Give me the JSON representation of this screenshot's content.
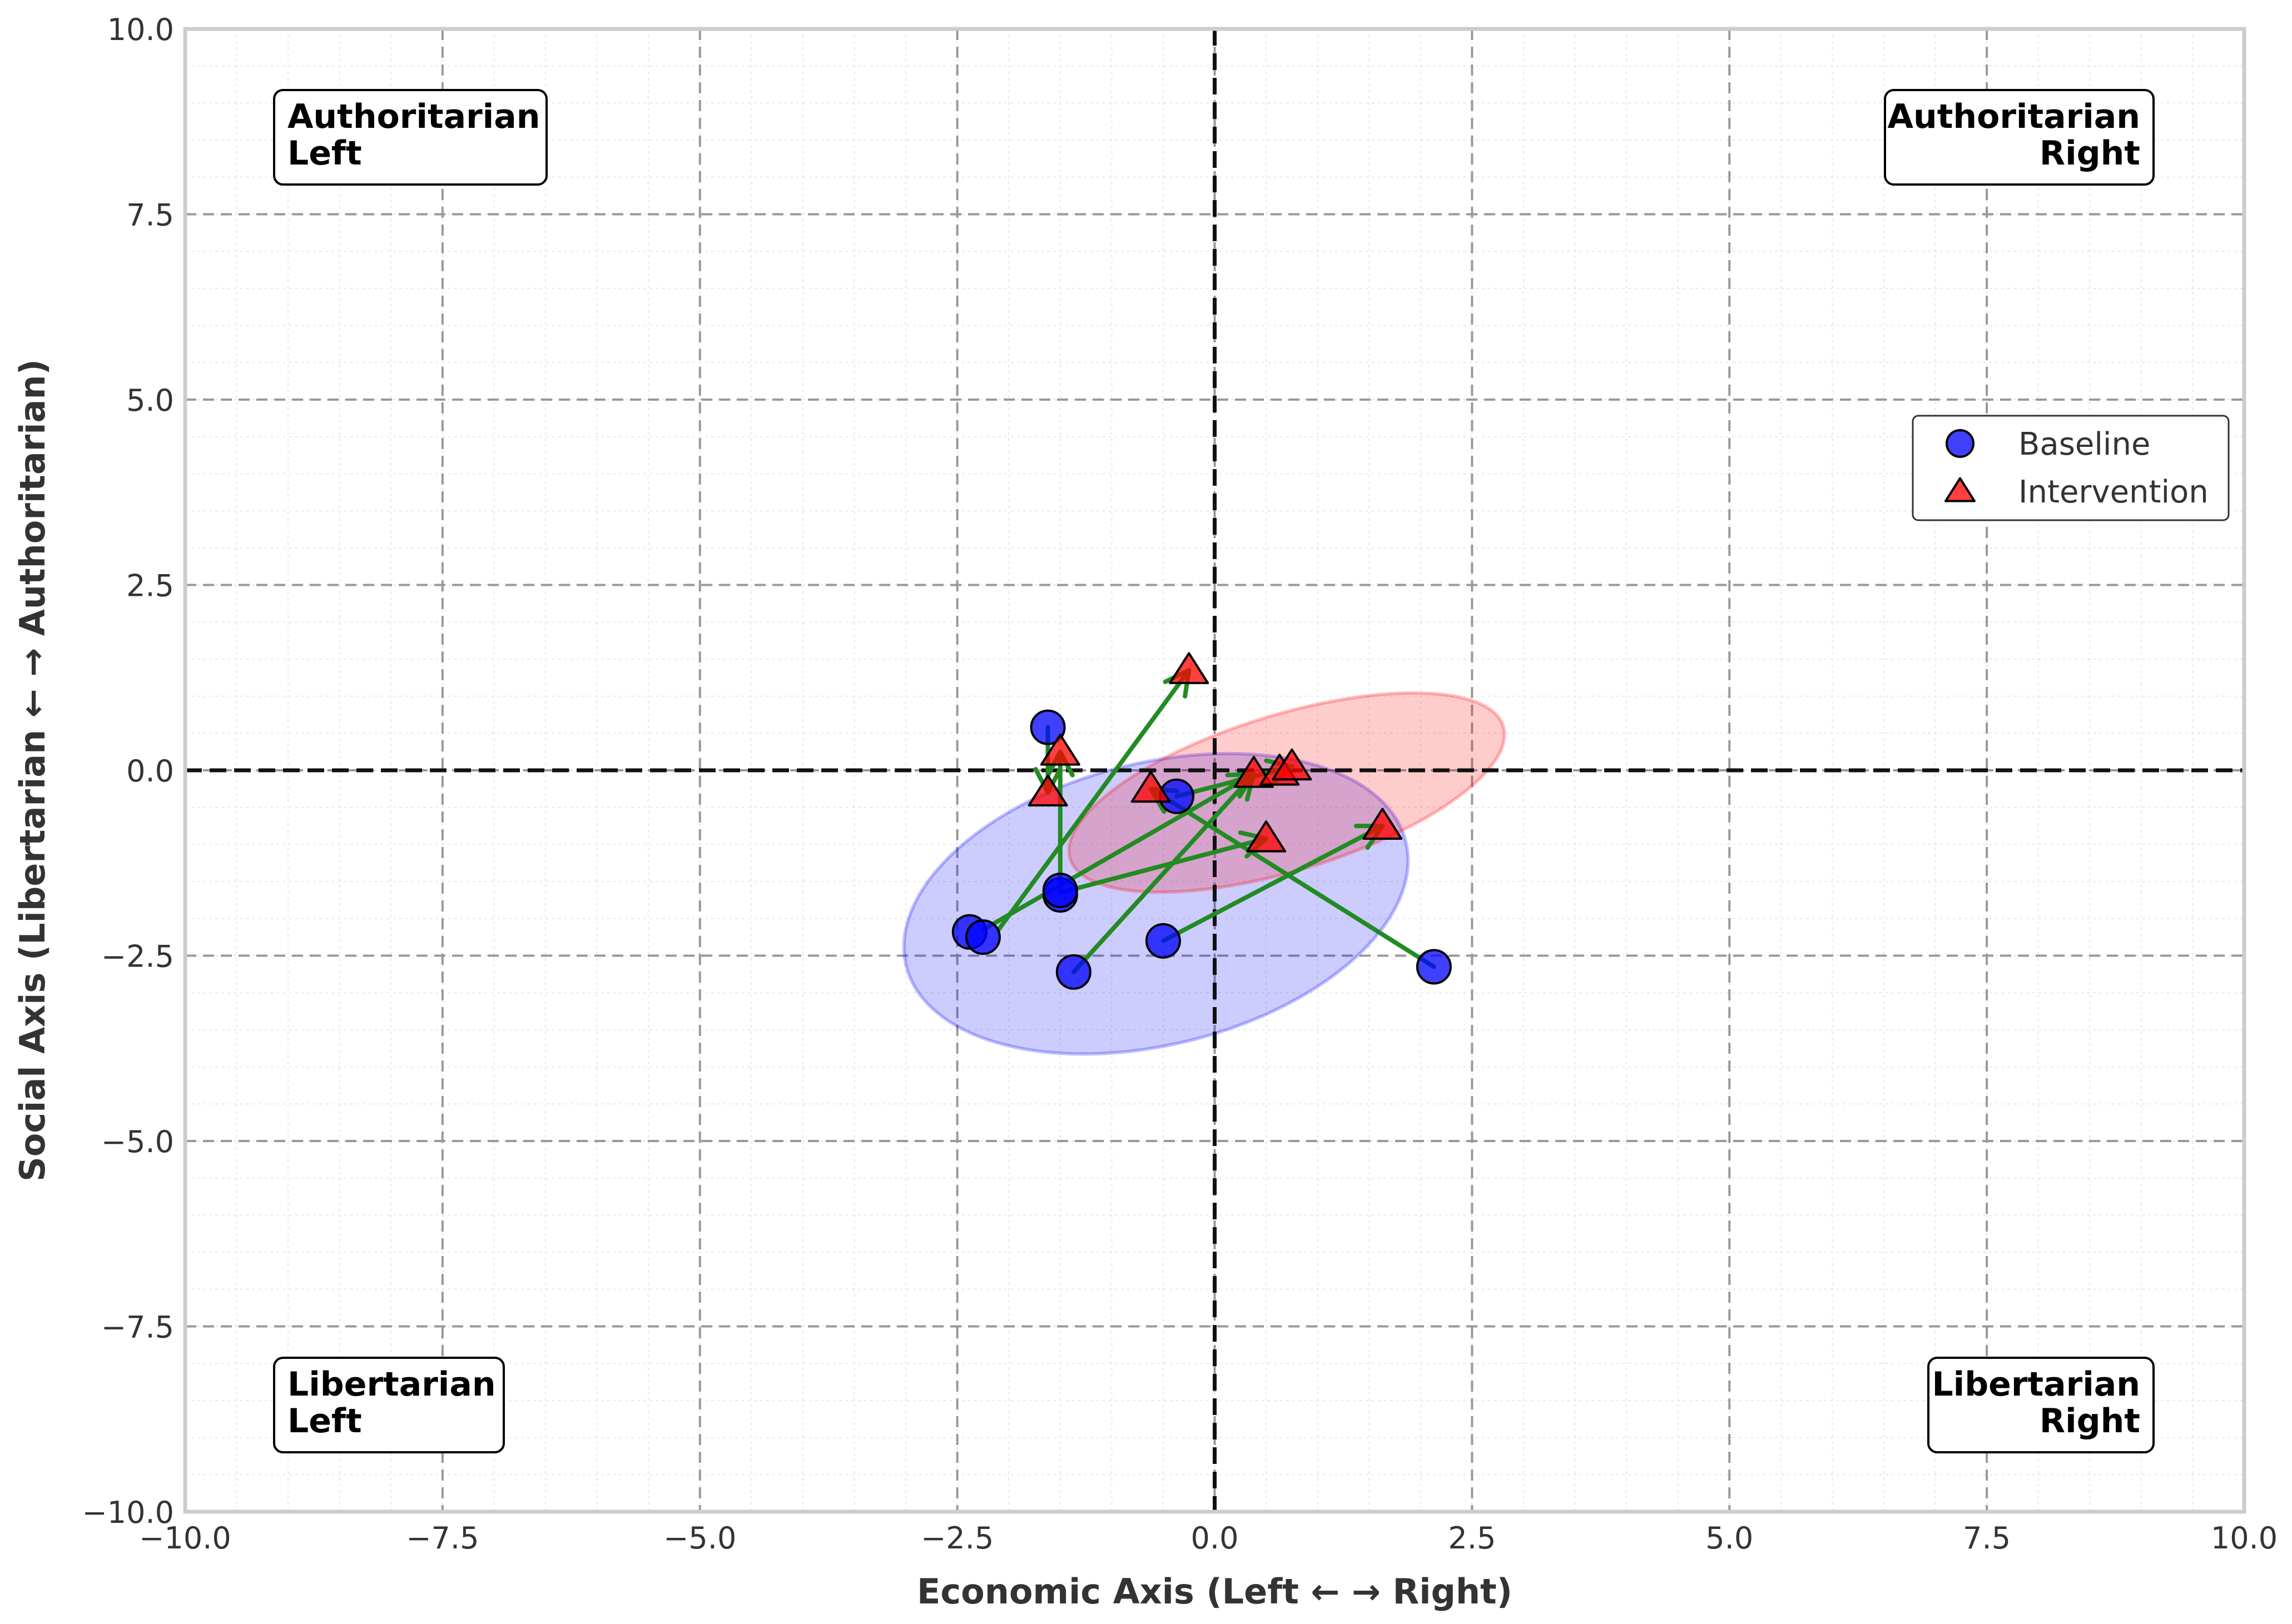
{
  "chart_data": {
    "type": "scatter",
    "title": "",
    "xlabel": "Economic Axis (Left ← → Right)",
    "ylabel": "Social Axis (Libertarian ← → Authoritarian)",
    "xlim": [
      -10,
      10
    ],
    "ylim": [
      -10,
      10
    ],
    "xticks": [
      -10,
      -7.5,
      -5,
      -2.5,
      0,
      2.5,
      5,
      7.5,
      10
    ],
    "yticks": [
      -10,
      -7.5,
      -5,
      -2.5,
      0,
      2.5,
      5,
      7.5,
      10
    ],
    "xtick_labels": [
      "−10.0",
      "−7.5",
      "−5.0",
      "−2.5",
      "0.0",
      "2.5",
      "5.0",
      "7.5",
      "10.0"
    ],
    "ytick_labels": [
      "−10.0",
      "−7.5",
      "−5.0",
      "−2.5",
      "0.0",
      "2.5",
      "5.0",
      "7.5",
      "10.0"
    ],
    "grid": true,
    "quadrant_labels": [
      {
        "id": "auth-left",
        "lines": [
          "Authoritarian",
          "Left"
        ],
        "corner": "top-left"
      },
      {
        "id": "auth-right",
        "lines": [
          "Authoritarian",
          "Right"
        ],
        "corner": "top-right"
      },
      {
        "id": "lib-left",
        "lines": [
          "Libertarian",
          "Left"
        ],
        "corner": "bottom-left"
      },
      {
        "id": "lib-right",
        "lines": [
          "Libertarian",
          "Right"
        ],
        "corner": "bottom-right"
      }
    ],
    "legend": {
      "placement": "right",
      "entries": [
        {
          "label": "Baseline",
          "marker": "circle",
          "color": "#0000ff"
        },
        {
          "label": "Intervention",
          "marker": "triangle",
          "color": "#ff0000"
        }
      ]
    },
    "series": [
      {
        "name": "Baseline",
        "marker": "circle",
        "color": "#0000ff",
        "points": [
          {
            "x": -1.62,
            "y": 0.58
          },
          {
            "x": -2.38,
            "y": -2.18
          },
          {
            "x": -2.25,
            "y": -2.25
          },
          {
            "x": -1.5,
            "y": -1.68
          },
          {
            "x": -1.5,
            "y": -1.62
          },
          {
            "x": -1.37,
            "y": -2.72
          },
          {
            "x": -0.5,
            "y": -2.3
          },
          {
            "x": -0.37,
            "y": -0.35
          },
          {
            "x": 2.13,
            "y": -2.65
          }
        ]
      },
      {
        "name": "Intervention",
        "marker": "triangle",
        "color": "#ff0000",
        "points": [
          {
            "x": -1.5,
            "y": 0.25
          },
          {
            "x": -1.62,
            "y": -0.3
          },
          {
            "x": -0.25,
            "y": 1.35
          },
          {
            "x": -0.62,
            "y": -0.25
          },
          {
            "x": 0.38,
            "y": -0.05
          },
          {
            "x": 0.63,
            "y": -0.02
          },
          {
            "x": 0.75,
            "y": 0.05
          },
          {
            "x": 0.5,
            "y": -0.92
          },
          {
            "x": 1.63,
            "y": -0.75
          }
        ]
      }
    ],
    "shifts": [
      {
        "from": [
          -1.62,
          0.58
        ],
        "to": [
          -1.62,
          -0.3
        ]
      },
      {
        "from": [
          -1.5,
          -1.65
        ],
        "to": [
          -1.5,
          0.25
        ]
      },
      {
        "from": [
          -1.5,
          -1.65
        ],
        "to": [
          0.5,
          -0.92
        ]
      },
      {
        "from": [
          -2.25,
          -2.15
        ],
        "to": [
          0.38,
          -0.05
        ]
      },
      {
        "from": [
          -1.37,
          -2.72
        ],
        "to": [
          0.38,
          -0.05
        ]
      },
      {
        "from": [
          -2.1,
          -2.15
        ],
        "to": [
          -0.25,
          1.35
        ]
      },
      {
        "from": [
          -0.5,
          -2.3
        ],
        "to": [
          1.63,
          -0.75
        ]
      },
      {
        "from": [
          -0.37,
          -0.35
        ],
        "to": [
          0.75,
          0.05
        ]
      },
      {
        "from": [
          2.13,
          -2.65
        ],
        "to": [
          -0.62,
          -0.25
        ]
      }
    ],
    "ellipses": [
      {
        "series": "Baseline",
        "color": "#0000ff",
        "cx": -0.57,
        "cy": -1.8,
        "rx": 2.5,
        "ry": 1.9,
        "angle": -14
      },
      {
        "series": "Intervention",
        "color": "#ff0000",
        "cx": 0.7,
        "cy": -0.3,
        "rx": 2.2,
        "ry": 1.05,
        "angle": -17
      }
    ]
  }
}
